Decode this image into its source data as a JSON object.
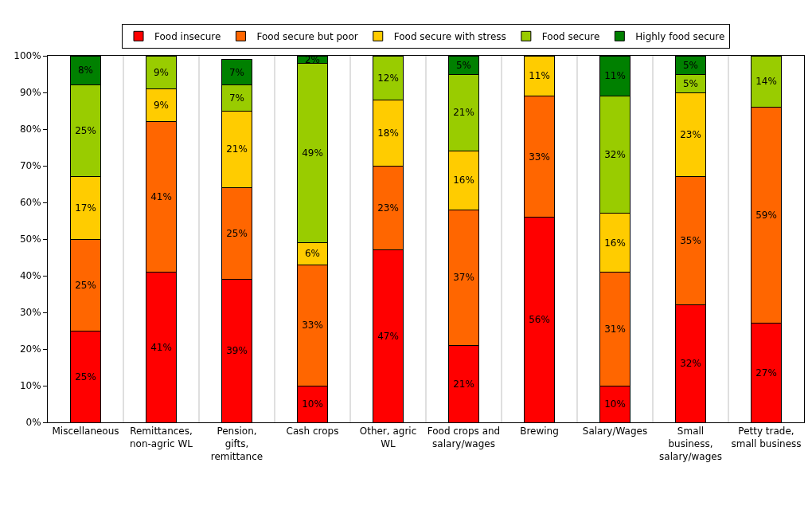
{
  "chart_data": {
    "type": "bar",
    "stacked": true,
    "legend": "top",
    "grid": "x",
    "categories": [
      "Miscellaneous",
      "Remittances, non-agric WL",
      "Pension, gifts, remittance",
      "Cash crops",
      "Other, agric WL",
      "Food crops and salary/wages",
      "Brewing",
      "Salary/Wages",
      "Small business, salary/wages",
      "Petty trade, small business"
    ],
    "ylim": [
      0,
      100
    ],
    "yticks": [
      {
        "value": 0,
        "label": "0%"
      },
      {
        "value": 10,
        "label": "10%"
      },
      {
        "value": 20,
        "label": "20%"
      },
      {
        "value": 30,
        "label": "30%"
      },
      {
        "value": 40,
        "label": "40%"
      },
      {
        "value": 50,
        "label": "50%"
      },
      {
        "value": 60,
        "label": "60%"
      },
      {
        "value": 70,
        "label": "70%"
      },
      {
        "value": 80,
        "label": "80%"
      },
      {
        "value": 90,
        "label": "90%"
      },
      {
        "value": 100,
        "label": "100%"
      }
    ],
    "series": [
      {
        "name": "Food insecure",
        "color": "#ff0000",
        "values": [
          25,
          41,
          39,
          10,
          47,
          21,
          56,
          10,
          32,
          27
        ],
        "value_labels": [
          "25%",
          "41%",
          "39%",
          "10%",
          "47%",
          "21%",
          "56%",
          "10%",
          "32%",
          "27%"
        ]
      },
      {
        "name": "Food secure but poor",
        "color": "#ff6600",
        "values": [
          25,
          41,
          25,
          33,
          23,
          37,
          33,
          31,
          35,
          59
        ],
        "value_labels": [
          "25%",
          "41%",
          "25%",
          "33%",
          "23%",
          "37%",
          "33%",
          "31%",
          "35%",
          "59%"
        ]
      },
      {
        "name": "Food secure with stress",
        "color": "#ffcc00",
        "values": [
          17,
          9,
          21,
          6,
          18,
          16,
          11,
          16,
          23,
          null
        ],
        "value_labels": [
          "17%",
          "9%",
          "21%",
          "6%",
          "18%",
          "16%",
          "11%",
          "16%",
          "23%",
          null
        ]
      },
      {
        "name": "Food secure",
        "color": "#99cc00",
        "values": [
          25,
          9,
          7,
          49,
          12,
          21,
          null,
          32,
          5,
          14
        ],
        "value_labels": [
          "25%",
          "9%",
          "7%",
          "49%",
          "12%",
          "21%",
          null,
          "32%",
          "5%",
          "14%"
        ]
      },
      {
        "name": "Highly food secure",
        "color": "#008000",
        "values": [
          8,
          null,
          7,
          2,
          null,
          5,
          null,
          11,
          5,
          null
        ],
        "value_labels": [
          "8%",
          null,
          "7%",
          "2%",
          null,
          "5%",
          null,
          "11%",
          "5%",
          null
        ]
      }
    ]
  }
}
